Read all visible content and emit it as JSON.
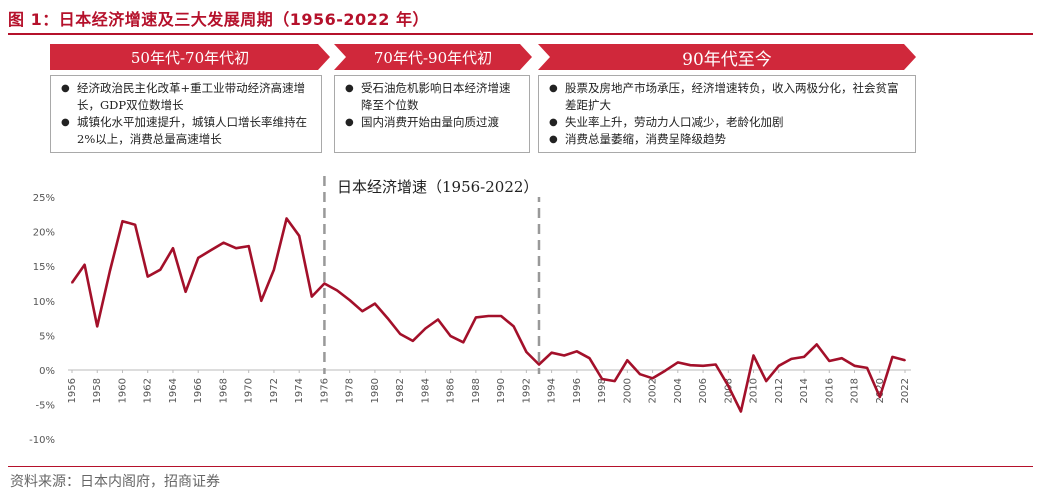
{
  "header": {
    "title": "图 1：日本经济增速及三大发展周期（1956-2022 年）"
  },
  "eras": [
    {
      "label": "50年代-70年代初",
      "bullets": [
        "经济政治民主化改革+重工业带动经济高速增长，GDP双位数增长",
        "城镇化水平加速提升，城镇人口增长率维持在2%以上，消费总量高速增长"
      ]
    },
    {
      "label": "70年代-90年代初",
      "bullets": [
        "受石油危机影响日本经济增速降至个位数",
        "国内消费开始由量向质过渡"
      ]
    },
    {
      "label": "90年代至今",
      "bullets": [
        "股票及房地产市场承压，经济增速转负，收入两极分化，社会贫富差距扩大",
        "失业率上升，劳动力人口减少，老龄化加剧",
        "消费总量萎缩，消费呈降级趋势"
      ]
    }
  ],
  "colors": {
    "brand": "#b5112b",
    "era_fill": "#d0283b",
    "series": "#a3102a",
    "divider": "#999999"
  },
  "chart_data": {
    "type": "line",
    "title": "日本经济增速（1956-2022）",
    "xlabel": "",
    "ylabel": "",
    "ylim": [
      -10,
      25
    ],
    "yticks": [
      -10,
      -5,
      0,
      5,
      10,
      15,
      20,
      25
    ],
    "ytick_labels": [
      "-10%",
      "-5%",
      "0%",
      "5%",
      "10%",
      "15%",
      "20%",
      "25%"
    ],
    "x": [
      1956,
      1957,
      1958,
      1959,
      1960,
      1961,
      1962,
      1963,
      1964,
      1965,
      1966,
      1967,
      1968,
      1969,
      1970,
      1971,
      1972,
      1973,
      1974,
      1975,
      1976,
      1977,
      1978,
      1979,
      1980,
      1981,
      1982,
      1983,
      1984,
      1985,
      1986,
      1987,
      1988,
      1989,
      1990,
      1991,
      1992,
      1993,
      1994,
      1995,
      1996,
      1997,
      1998,
      1999,
      2000,
      2001,
      2002,
      2003,
      2004,
      2005,
      2006,
      2007,
      2008,
      2009,
      2010,
      2011,
      2012,
      2013,
      2014,
      2015,
      2016,
      2017,
      2018,
      2019,
      2020,
      2021,
      2022
    ],
    "xtick_labels": [
      "1956",
      "1958",
      "1960",
      "1962",
      "1964",
      "1966",
      "1968",
      "1970",
      "1972",
      "1974",
      "1976",
      "1978",
      "1980",
      "1982",
      "1984",
      "1986",
      "1988",
      "1990",
      "1992",
      "1994",
      "1996",
      "1998",
      "2000",
      "2002",
      "2004",
      "2006",
      "2008",
      "2010",
      "2012",
      "2014",
      "2016",
      "2018",
      "2020",
      "2022"
    ],
    "series": [
      {
        "name": "",
        "values": [
          12.6,
          15.2,
          6.3,
          14.3,
          21.5,
          21.0,
          13.5,
          14.5,
          17.6,
          11.3,
          16.2,
          17.3,
          18.4,
          17.6,
          17.9,
          10.0,
          14.5,
          21.9,
          19.4,
          10.6,
          12.5,
          11.5,
          10.1,
          8.5,
          9.6,
          7.5,
          5.2,
          4.2,
          6.0,
          7.3,
          4.9,
          4.0,
          7.6,
          7.8,
          7.8,
          6.3,
          2.6,
          0.8,
          2.5,
          2.1,
          2.7,
          1.7,
          -1.3,
          -1.6,
          1.4,
          -0.6,
          -1.2,
          -0.1,
          1.1,
          0.7,
          0.6,
          0.8,
          -2.3,
          -6.0,
          2.1,
          -1.6,
          0.6,
          1.6,
          1.9,
          3.7,
          1.3,
          1.7,
          0.6,
          0.3,
          -3.9,
          1.9,
          1.4
        ]
      }
    ],
    "dividers": [
      1976,
      1993
    ],
    "grid": false,
    "legend": "none"
  },
  "footer": {
    "source": "资料来源：日本内阁府，招商证券"
  }
}
